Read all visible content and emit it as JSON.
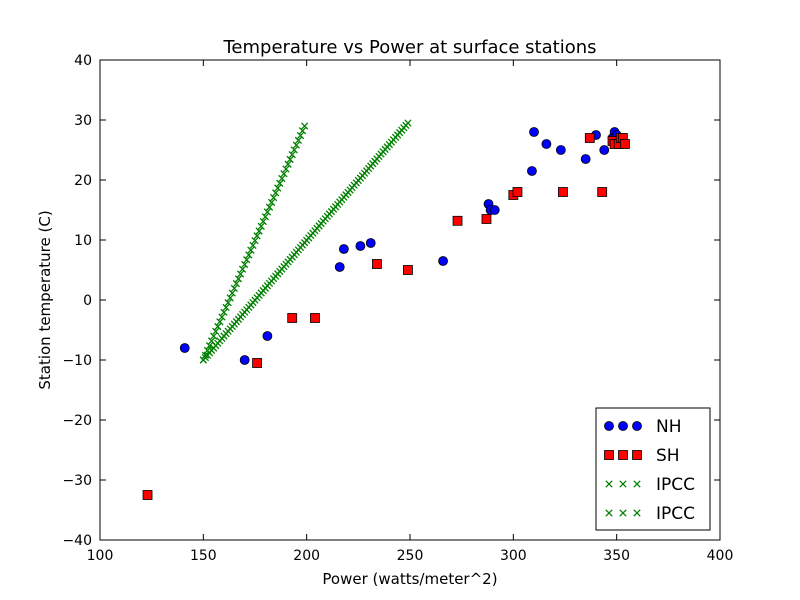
{
  "chart_data": {
    "type": "scatter",
    "title": "Temperature vs Power at surface stations",
    "xlabel": "Power (watts/meter^2)",
    "ylabel": "Station temperature (C)",
    "xlim": [
      100,
      400
    ],
    "ylim": [
      -40,
      40
    ],
    "xticks": [
      100,
      150,
      200,
      250,
      300,
      350,
      400
    ],
    "yticks": [
      -40,
      -30,
      -20,
      -10,
      0,
      10,
      20,
      30,
      40
    ],
    "xtick_labels": [
      "100",
      "150",
      "200",
      "250",
      "300",
      "350",
      "400"
    ],
    "ytick_labels": [
      "−40",
      "−30",
      "−20",
      "−10",
      "0",
      "10",
      "20",
      "30",
      "40"
    ],
    "grid": false,
    "legend_position": "bottom-right",
    "series": [
      {
        "name": "NH",
        "marker": "circle",
        "color": "#0000ff",
        "x": [
          141,
          170,
          181,
          216,
          218,
          226,
          231,
          266,
          288,
          289,
          291,
          309,
          310,
          316,
          323,
          335,
          340,
          344,
          348,
          349,
          350,
          351,
          352,
          353
        ],
        "y": [
          -8,
          -10,
          -6,
          5.5,
          8.5,
          9,
          9.5,
          6.5,
          16,
          15,
          15,
          21.5,
          28,
          26,
          25,
          23.5,
          27.5,
          25,
          27,
          28,
          27.5,
          26.5,
          27,
          26.5
        ]
      },
      {
        "name": "SH",
        "marker": "square",
        "color": "#ff0000",
        "x": [
          123,
          176,
          193,
          204,
          234,
          249,
          273,
          287,
          300,
          302,
          324,
          337,
          343,
          348,
          349,
          351,
          352,
          353,
          354
        ],
        "y": [
          -32.5,
          -10.5,
          -3,
          -3,
          6,
          5,
          13.2,
          13.5,
          17.5,
          18,
          18,
          27,
          18,
          26.5,
          26,
          26,
          27,
          27,
          26
        ]
      },
      {
        "name": "IPCC",
        "marker": "x",
        "color": "#008000",
        "line": true,
        "x": [
          150,
          199
        ],
        "y": [
          -10,
          29
        ]
      },
      {
        "name": "IPCC",
        "marker": "x",
        "color": "#008000",
        "line": true,
        "x": [
          150,
          249
        ],
        "y": [
          -10,
          29.5
        ]
      }
    ]
  }
}
